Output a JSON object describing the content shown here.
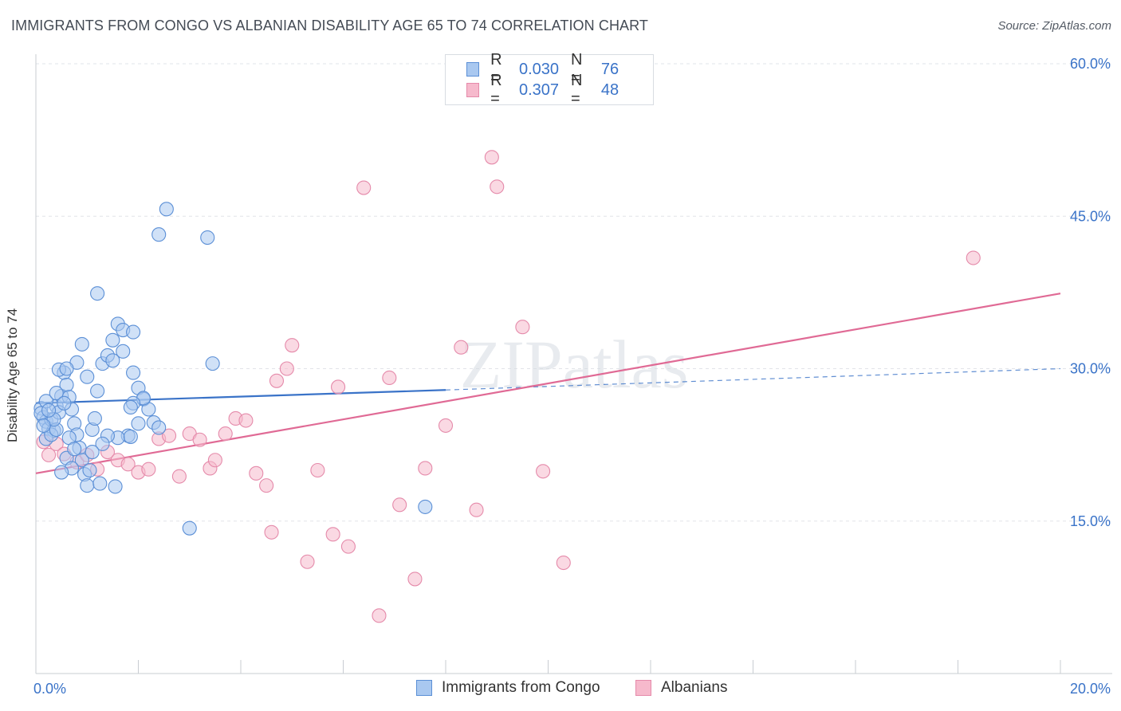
{
  "title": "IMMIGRANTS FROM CONGO VS ALBANIAN DISABILITY AGE 65 TO 74 CORRELATION CHART",
  "source": "Source: ZipAtlas.com",
  "legend": {
    "rows": [
      {
        "r_label": "R =",
        "r_value": "0.030",
        "n_label": "N =",
        "n_value": "76"
      },
      {
        "r_label": "R =",
        "r_value": "0.307",
        "n_label": "N =",
        "n_value": "48"
      }
    ]
  },
  "bottom_legend": [
    "Immigrants from Congo",
    "Albanians"
  ],
  "colors": {
    "blue_fill": "#a9c8f0",
    "blue_stroke": "#5b8fd6",
    "blue_line": "#3a73c8",
    "pink_fill": "#f6b9cc",
    "pink_stroke": "#e58aaa",
    "pink_line": "#e06a95",
    "tick_text": "#3a73c8",
    "grid": "#e2e4e8"
  },
  "chart_data": {
    "type": "scatter",
    "title": "IMMIGRANTS FROM CONGO VS ALBANIAN DISABILITY AGE 65 TO 74 CORRELATION CHART",
    "xlabel": "",
    "ylabel": "Disability Age 65 to 74",
    "xlim": [
      0,
      20
    ],
    "ylim": [
      0,
      60
    ],
    "x_tick_labels": [
      "0.0%",
      "20.0%"
    ],
    "y_ticks": [
      15,
      30,
      45,
      60
    ],
    "y_tick_labels": [
      "15.0%",
      "30.0%",
      "45.0%",
      "60.0%"
    ],
    "watermark": "ZIPatlas",
    "series": [
      {
        "name": "Immigrants from Congo",
        "r": 0.03,
        "n": 76,
        "trend": {
          "x0": 0,
          "y0": 26.6,
          "x1": 8.0,
          "y1": 27.9,
          "dashed_to_x": 20,
          "dashed_to_y": 30.0
        },
        "points": [
          [
            0.1,
            26.1
          ],
          [
            0.15,
            25.2
          ],
          [
            0.2,
            24.8
          ],
          [
            0.25,
            24.1
          ],
          [
            0.3,
            25.0
          ],
          [
            0.35,
            23.9
          ],
          [
            0.4,
            26.3
          ],
          [
            0.45,
            25.7
          ],
          [
            0.5,
            27.3
          ],
          [
            0.55,
            29.6
          ],
          [
            0.6,
            28.4
          ],
          [
            0.65,
            27.2
          ],
          [
            0.7,
            26.0
          ],
          [
            0.75,
            24.6
          ],
          [
            0.8,
            23.5
          ],
          [
            0.85,
            22.2
          ],
          [
            0.9,
            21.0
          ],
          [
            0.95,
            19.6
          ],
          [
            1.0,
            18.5
          ],
          [
            1.05,
            20.0
          ],
          [
            1.1,
            24.0
          ],
          [
            1.15,
            25.1
          ],
          [
            1.2,
            27.8
          ],
          [
            1.3,
            30.5
          ],
          [
            1.4,
            31.3
          ],
          [
            1.5,
            32.8
          ],
          [
            1.6,
            34.4
          ],
          [
            1.7,
            33.8
          ],
          [
            1.2,
            37.4
          ],
          [
            0.9,
            32.4
          ],
          [
            0.8,
            30.6
          ],
          [
            1.0,
            29.2
          ],
          [
            1.9,
            29.6
          ],
          [
            2.0,
            28.1
          ],
          [
            2.1,
            27.0
          ],
          [
            2.2,
            26.0
          ],
          [
            2.3,
            24.7
          ],
          [
            2.4,
            24.2
          ],
          [
            1.8,
            23.4
          ],
          [
            1.6,
            23.2
          ],
          [
            1.4,
            23.4
          ],
          [
            1.3,
            22.6
          ],
          [
            1.1,
            21.8
          ],
          [
            0.6,
            21.2
          ],
          [
            0.7,
            20.2
          ],
          [
            0.5,
            19.8
          ],
          [
            1.25,
            18.7
          ],
          [
            1.55,
            18.4
          ],
          [
            0.2,
            23.1
          ],
          [
            0.3,
            23.5
          ],
          [
            0.4,
            24.0
          ],
          [
            0.2,
            26.8
          ],
          [
            0.1,
            25.6
          ],
          [
            0.35,
            25.0
          ],
          [
            0.25,
            25.9
          ],
          [
            0.15,
            24.4
          ],
          [
            0.4,
            27.6
          ],
          [
            0.55,
            26.6
          ],
          [
            0.65,
            23.2
          ],
          [
            0.75,
            22.1
          ],
          [
            0.45,
            29.9
          ],
          [
            0.6,
            30.0
          ],
          [
            1.5,
            30.8
          ],
          [
            1.7,
            31.7
          ],
          [
            2.1,
            27.1
          ],
          [
            1.9,
            26.6
          ],
          [
            1.85,
            26.2
          ],
          [
            2.0,
            24.6
          ],
          [
            1.85,
            23.3
          ],
          [
            1.9,
            33.6
          ],
          [
            2.55,
            45.7
          ],
          [
            2.4,
            43.2
          ],
          [
            3.35,
            42.9
          ],
          [
            3.0,
            14.3
          ],
          [
            3.45,
            30.5
          ],
          [
            7.6,
            16.4
          ]
        ]
      },
      {
        "name": "Albanians",
        "r": 0.307,
        "n": 48,
        "trend": {
          "x0": 0,
          "y0": 19.7,
          "x1": 20,
          "y1": 37.4
        },
        "points": [
          [
            0.15,
            22.8
          ],
          [
            0.25,
            21.5
          ],
          [
            0.4,
            22.6
          ],
          [
            0.55,
            21.6
          ],
          [
            0.8,
            20.8
          ],
          [
            1.0,
            21.5
          ],
          [
            1.2,
            20.1
          ],
          [
            1.4,
            21.8
          ],
          [
            1.6,
            21.0
          ],
          [
            1.8,
            20.6
          ],
          [
            2.0,
            19.8
          ],
          [
            2.2,
            20.1
          ],
          [
            2.4,
            23.1
          ],
          [
            2.6,
            23.4
          ],
          [
            2.8,
            19.4
          ],
          [
            3.0,
            23.6
          ],
          [
            3.2,
            23.0
          ],
          [
            3.4,
            20.2
          ],
          [
            3.5,
            21.0
          ],
          [
            3.7,
            23.6
          ],
          [
            3.9,
            25.1
          ],
          [
            4.1,
            24.9
          ],
          [
            4.3,
            19.7
          ],
          [
            4.5,
            18.5
          ],
          [
            4.6,
            13.9
          ],
          [
            4.7,
            28.8
          ],
          [
            4.9,
            30.0
          ],
          [
            5.0,
            32.3
          ],
          [
            5.3,
            11.0
          ],
          [
            5.5,
            20.0
          ],
          [
            5.8,
            13.7
          ],
          [
            5.9,
            28.2
          ],
          [
            6.1,
            12.5
          ],
          [
            6.4,
            47.8
          ],
          [
            6.7,
            5.7
          ],
          [
            6.9,
            29.1
          ],
          [
            7.1,
            16.6
          ],
          [
            7.4,
            9.3
          ],
          [
            7.6,
            20.2
          ],
          [
            8.0,
            24.4
          ],
          [
            8.3,
            32.1
          ],
          [
            8.6,
            16.1
          ],
          [
            8.9,
            50.8
          ],
          [
            9.0,
            47.9
          ],
          [
            9.5,
            34.1
          ],
          [
            9.9,
            19.9
          ],
          [
            10.3,
            10.9
          ],
          [
            18.3,
            40.9
          ]
        ]
      }
    ]
  }
}
